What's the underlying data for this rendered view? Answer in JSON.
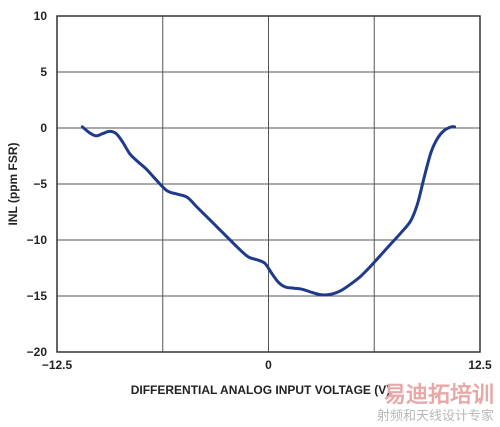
{
  "chart_data": {
    "type": "line",
    "xlabel": "DIFFERENTIAL ANALOG INPUT VOLTAGE (V)",
    "ylabel": "INL (ppm FSR)",
    "xlim": [
      -12.5,
      12.5
    ],
    "ylim": [
      -20,
      10
    ],
    "x_ticks": [
      -12.5,
      0,
      12.5
    ],
    "x_tick_labels": [
      "−12.5",
      "0",
      "12.5"
    ],
    "y_ticks": [
      10,
      5,
      0,
      -5,
      -10,
      -15,
      -20
    ],
    "y_tick_labels": [
      "10",
      "5",
      "0",
      "−5",
      "−10",
      "−15",
      "−20"
    ],
    "x_grid": [
      -12.5,
      -6.25,
      0,
      6.25,
      12.5
    ],
    "y_grid": [
      10,
      5,
      0,
      -5,
      -10,
      -15,
      -20
    ],
    "grid": true,
    "line_color": "#1f3a8a",
    "series": [
      {
        "x": [
          -11.0,
          -10.6,
          -10.2,
          -9.8,
          -9.4,
          -9.0,
          -8.6,
          -8.2,
          -7.8,
          -7.2,
          -6.6,
          -6.0,
          -5.4,
          -4.8,
          -4.2,
          -3.6,
          -3.0,
          -2.4,
          -1.8,
          -1.2,
          -0.6,
          -0.2,
          0.2,
          0.6,
          1.0,
          1.5,
          2.0,
          2.6,
          3.2,
          3.8,
          4.3,
          4.8,
          5.4,
          6.0,
          6.6,
          7.2,
          7.8,
          8.4,
          8.8,
          9.2,
          9.6,
          10.0,
          10.4,
          10.8,
          11.0
        ],
        "y": [
          0.1,
          -0.4,
          -0.7,
          -0.5,
          -0.3,
          -0.5,
          -1.3,
          -2.3,
          -2.9,
          -3.7,
          -4.7,
          -5.6,
          -5.9,
          -6.2,
          -7.1,
          -8.0,
          -8.9,
          -9.8,
          -10.7,
          -11.5,
          -11.8,
          -12.1,
          -13.0,
          -13.8,
          -14.2,
          -14.3,
          -14.4,
          -14.7,
          -14.9,
          -14.8,
          -14.5,
          -14.0,
          -13.3,
          -12.4,
          -11.4,
          -10.4,
          -9.4,
          -8.3,
          -6.8,
          -4.4,
          -2.2,
          -0.9,
          -0.2,
          0.1,
          0.1
        ]
      }
    ]
  },
  "watermark": {
    "main": "易迪拓培训",
    "sub": "射频和天线设计专家"
  }
}
